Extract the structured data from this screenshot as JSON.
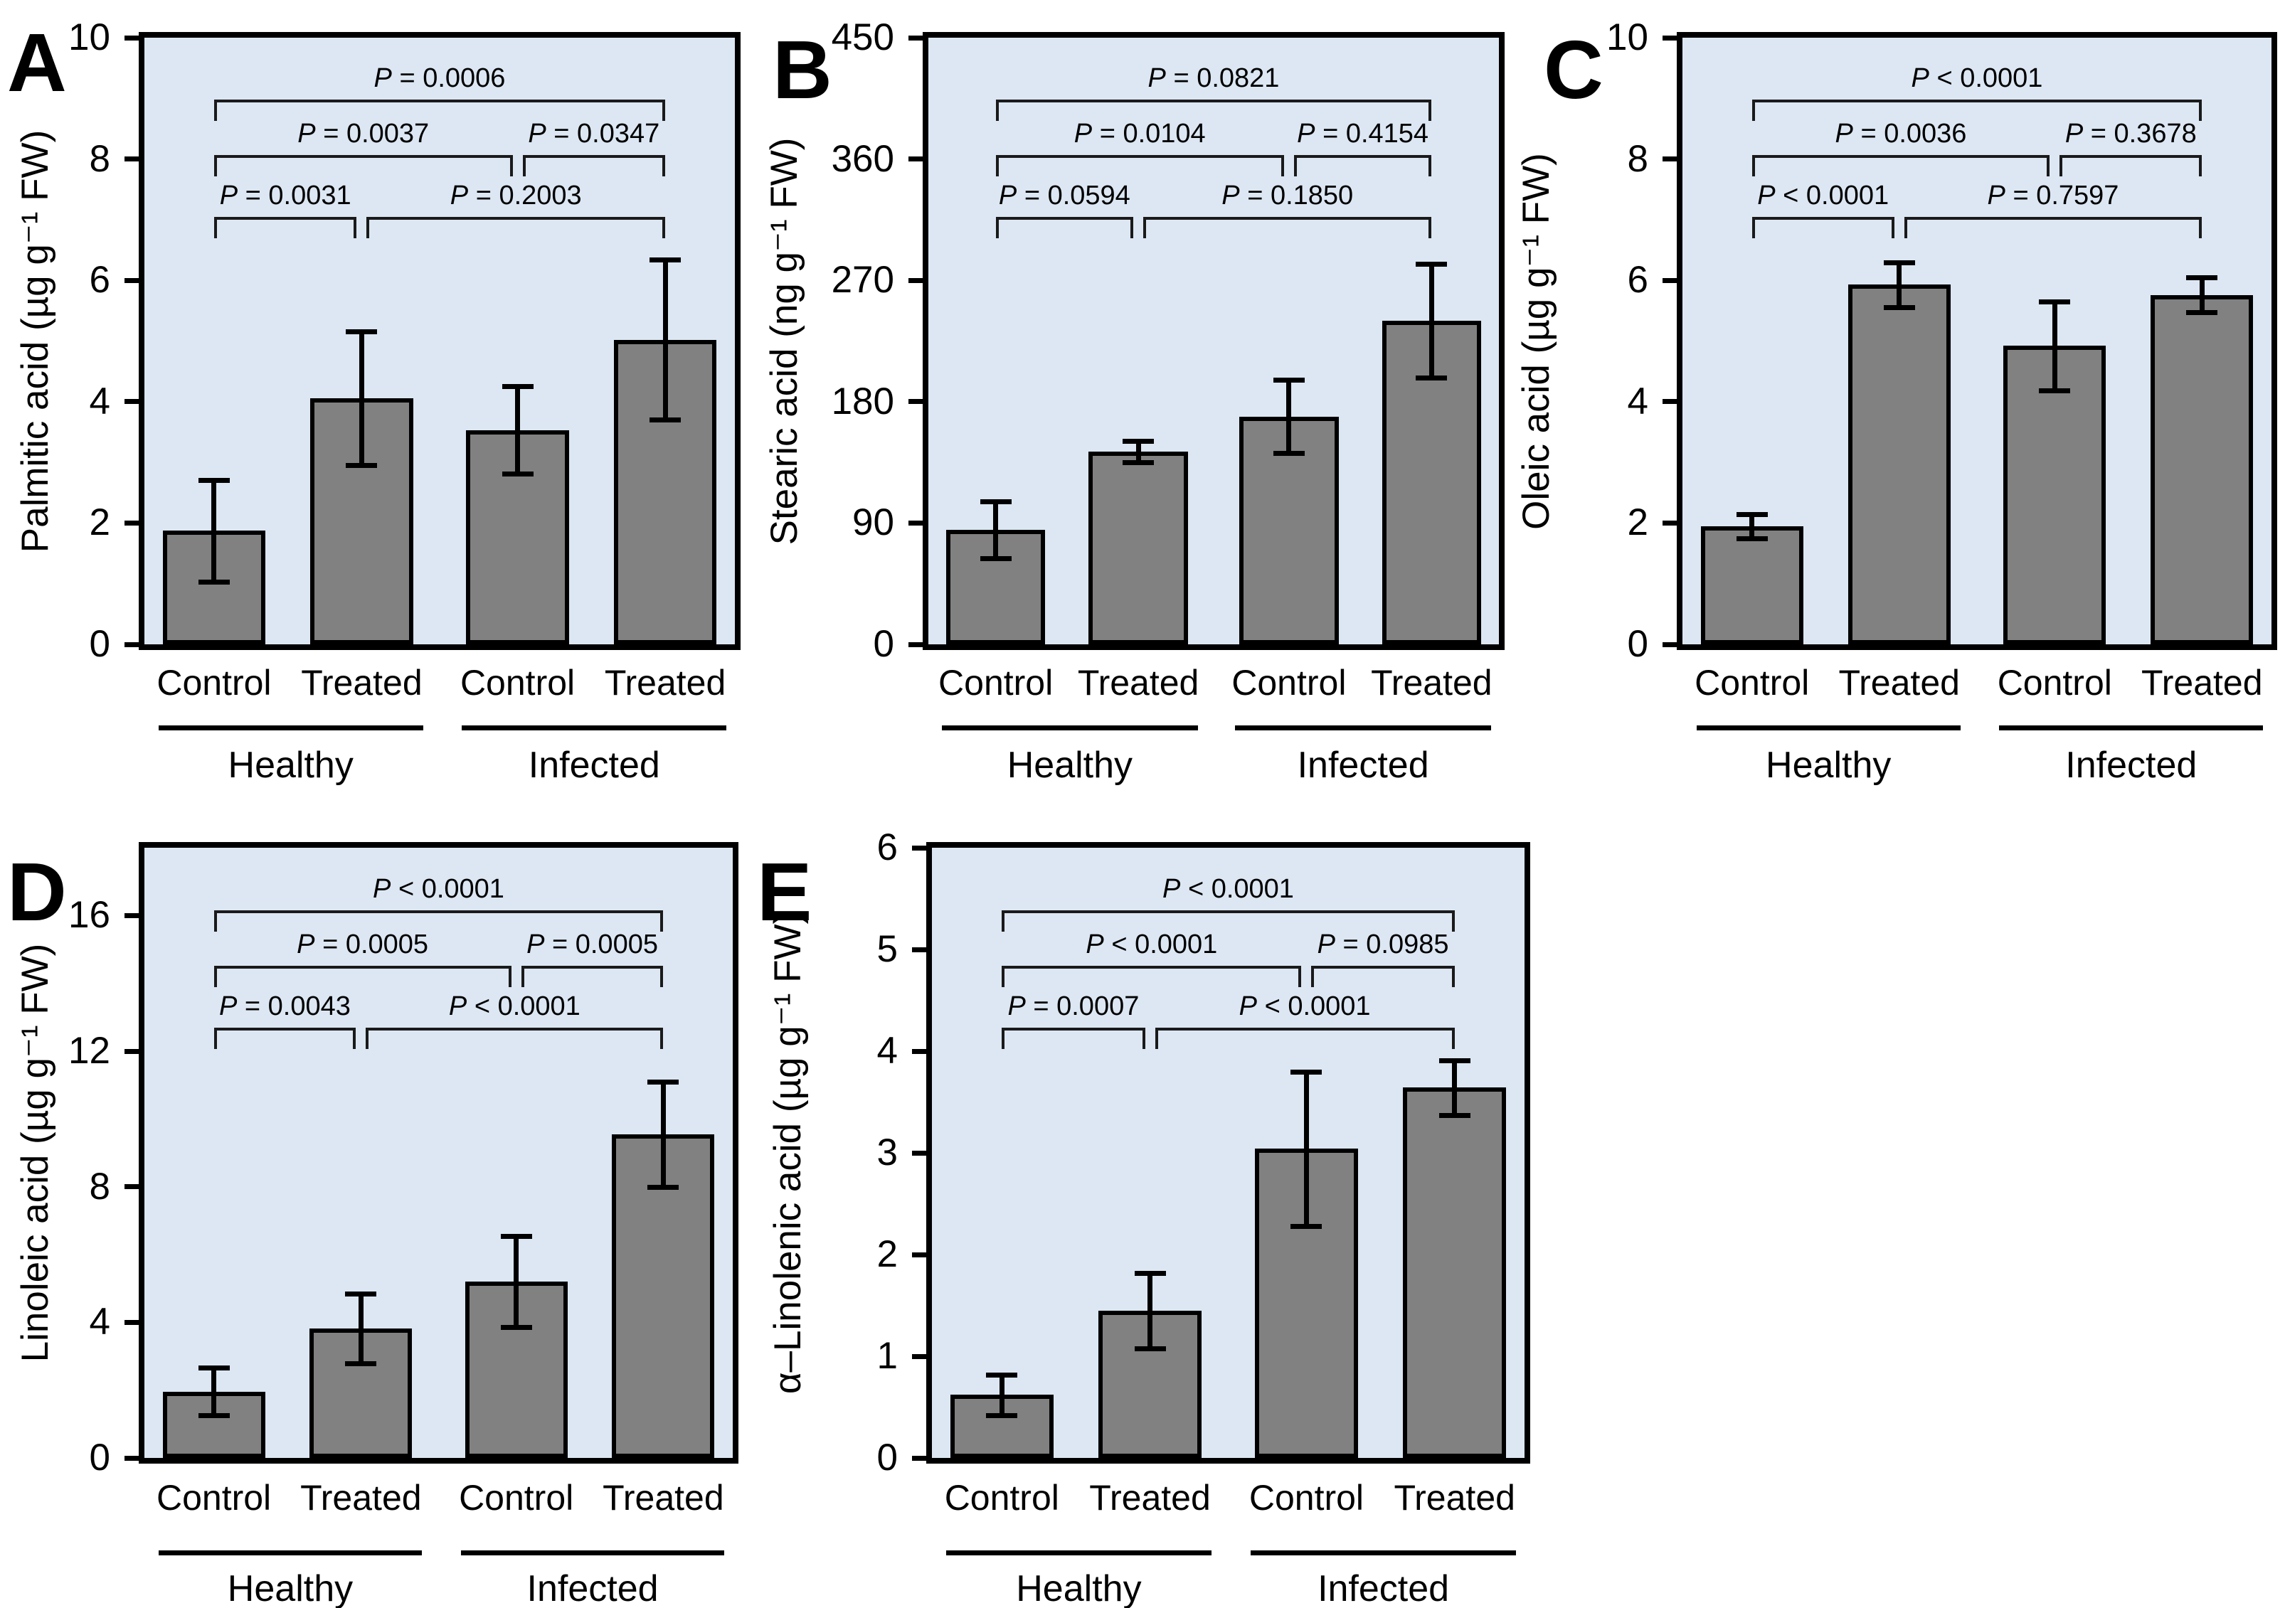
{
  "style": {
    "page_bg": "#ffffff",
    "plot_bg": "#dce7f3",
    "bar_fill": "#818181",
    "line_color": "#000000",
    "bracket_color": "#1a1a1a",
    "text_color": "#000000"
  },
  "chart_data": [
    {
      "panel": "A",
      "type": "bar",
      "ylabel": "Palmitic acid (µg g⁻¹ FW)",
      "ylim": [
        0,
        10
      ],
      "yticks": [
        0,
        2,
        4,
        6,
        8,
        10
      ],
      "categories": [
        "Control",
        "Treated",
        "Control",
        "Treated"
      ],
      "group_labels": [
        "Healthy",
        "Infected"
      ],
      "values": [
        1.87,
        4.06,
        3.53,
        5.02
      ],
      "errors": [
        0.84,
        1.1,
        0.72,
        1.32
      ],
      "grid": false,
      "legend": false,
      "significance": [
        {
          "bars": "1-2",
          "p": "P = 0.0031"
        },
        {
          "bars": "2-4",
          "p": "P = 0.2003"
        },
        {
          "bars": "1-3",
          "p": "P = 0.0037"
        },
        {
          "bars": "3-4",
          "p": "P = 0.0347"
        },
        {
          "bars": "1-4",
          "p": "P = 0.0006"
        }
      ]
    },
    {
      "panel": "B",
      "type": "bar",
      "ylabel": "Stearic acid (ng g⁻¹ FW)",
      "ylim": [
        0,
        450
      ],
      "yticks": [
        0,
        90,
        180,
        270,
        360,
        450
      ],
      "categories": [
        "Control",
        "Treated",
        "Control",
        "Treated"
      ],
      "group_labels": [
        "Healthy",
        "Infected"
      ],
      "values": [
        85,
        143,
        169,
        240
      ],
      "errors": [
        21,
        8,
        27,
        42
      ],
      "grid": false,
      "legend": false,
      "significance": [
        {
          "bars": "1-2",
          "p": "P = 0.0594"
        },
        {
          "bars": "2-4",
          "p": "P = 0.1850"
        },
        {
          "bars": "1-3",
          "p": "P = 0.0104"
        },
        {
          "bars": "3-4",
          "p": "P = 0.4154"
        },
        {
          "bars": "1-4",
          "p": "P = 0.0821"
        }
      ]
    },
    {
      "panel": "C",
      "type": "bar",
      "ylabel": "Oleic acid (µg g⁻¹ FW)",
      "ylim": [
        0,
        10
      ],
      "yticks": [
        0,
        2,
        4,
        6,
        8,
        10
      ],
      "categories": [
        "Control",
        "Treated",
        "Control",
        "Treated"
      ],
      "group_labels": [
        "Healthy",
        "Infected"
      ],
      "values": [
        1.95,
        5.93,
        4.92,
        5.76
      ],
      "errors": [
        0.2,
        0.37,
        0.73,
        0.29
      ],
      "grid": false,
      "legend": false,
      "significance": [
        {
          "bars": "1-2",
          "p": "P < 0.0001"
        },
        {
          "bars": "2-4",
          "p": "P = 0.7597"
        },
        {
          "bars": "1-3",
          "p": "P = 0.0036"
        },
        {
          "bars": "3-4",
          "p": "P = 0.3678"
        },
        {
          "bars": "1-4",
          "p": "P < 0.0001"
        }
      ]
    },
    {
      "panel": "D",
      "type": "bar",
      "ylabel": "Linoleic acid (µg g⁻¹ FW)",
      "ylim": [
        0,
        18
      ],
      "yticks": [
        0,
        4,
        8,
        12,
        16
      ],
      "categories": [
        "Control",
        "Treated",
        "Control",
        "Treated"
      ],
      "group_labels": [
        "Healthy",
        "Infected"
      ],
      "values": [
        1.96,
        3.82,
        5.2,
        9.55
      ],
      "errors": [
        0.7,
        1.02,
        1.34,
        1.55
      ],
      "grid": false,
      "legend": false,
      "significance": [
        {
          "bars": "1-2",
          "p": "P = 0.0043"
        },
        {
          "bars": "2-4",
          "p": "P < 0.0001"
        },
        {
          "bars": "1-3",
          "p": "P = 0.0005"
        },
        {
          "bars": "3-4",
          "p": "P = 0.0005"
        },
        {
          "bars": "1-4",
          "p": "P < 0.0001"
        }
      ]
    },
    {
      "panel": "E",
      "type": "bar",
      "ylabel": "α–Linolenic acid (µg g⁻¹ FW)",
      "ylim": [
        0,
        6
      ],
      "yticks": [
        0,
        1,
        2,
        3,
        4,
        5,
        6
      ],
      "categories": [
        "Control",
        "Treated",
        "Control",
        "Treated"
      ],
      "group_labels": [
        "Healthy",
        "Infected"
      ],
      "values": [
        0.62,
        1.45,
        3.04,
        3.64
      ],
      "errors": [
        0.2,
        0.37,
        0.76,
        0.27
      ],
      "grid": false,
      "legend": false,
      "significance": [
        {
          "bars": "1-2",
          "p": "P = 0.0007"
        },
        {
          "bars": "2-4",
          "p": "P < 0.0001"
        },
        {
          "bars": "1-3",
          "p": "P < 0.0001"
        },
        {
          "bars": "3-4",
          "p": "P = 0.0985"
        },
        {
          "bars": "1-4",
          "p": "P < 0.0001"
        }
      ]
    }
  ]
}
